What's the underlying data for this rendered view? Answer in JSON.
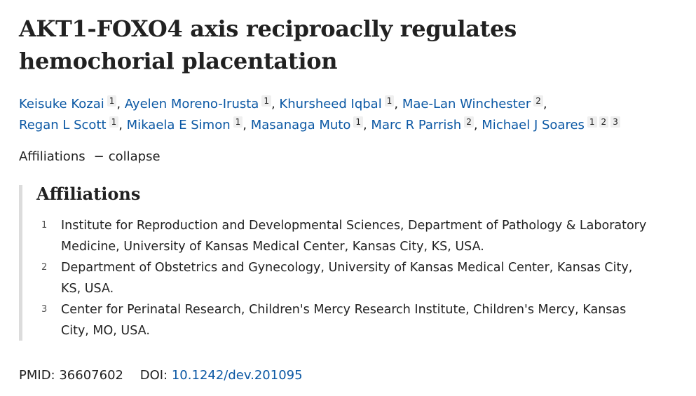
{
  "title": "AKT1-FOXO4 axis reciproaclly regulates hemochorial placentation",
  "authors": [
    {
      "name": "Keisuke Kozai",
      "affs": [
        "1"
      ]
    },
    {
      "name": "Ayelen Moreno-Irusta",
      "affs": [
        "1"
      ]
    },
    {
      "name": "Khursheed Iqbal",
      "affs": [
        "1"
      ]
    },
    {
      "name": "Mae-Lan Winchester",
      "affs": [
        "2"
      ]
    },
    {
      "name": "Regan L Scott",
      "affs": [
        "1"
      ]
    },
    {
      "name": "Mikaela E Simon",
      "affs": [
        "1"
      ]
    },
    {
      "name": "Masanaga Muto",
      "affs": [
        "1"
      ]
    },
    {
      "name": "Marc R Parrish",
      "affs": [
        "2"
      ]
    },
    {
      "name": "Michael J Soares",
      "affs": [
        "1",
        "2",
        "3"
      ]
    }
  ],
  "affiliations_toggle": {
    "label": "Affiliations",
    "dash": "−",
    "action": "collapse"
  },
  "affiliations": {
    "heading": "Affiliations",
    "items": [
      {
        "num": "1",
        "text": "Institute for Reproduction and Developmental Sciences, Department of Pathology & Laboratory Medicine, University of Kansas Medical Center, Kansas City, KS, USA."
      },
      {
        "num": "2",
        "text": "Department of Obstetrics and Gynecology, University of Kansas Medical Center, Kansas City, KS, USA."
      },
      {
        "num": "3",
        "text": "Center for Perinatal Research, Children's Mercy Research Institute, Children's Mercy, Kansas City, MO, USA."
      }
    ]
  },
  "identifiers": {
    "pmid_label": "PMID:",
    "pmid": "36607602",
    "doi_label": "DOI:",
    "doi": "10.1242/dev.201095"
  },
  "colors": {
    "link": "#0b58a4",
    "text": "#212121",
    "sup_bg": "#efefef",
    "border": "#dcdcdc"
  }
}
